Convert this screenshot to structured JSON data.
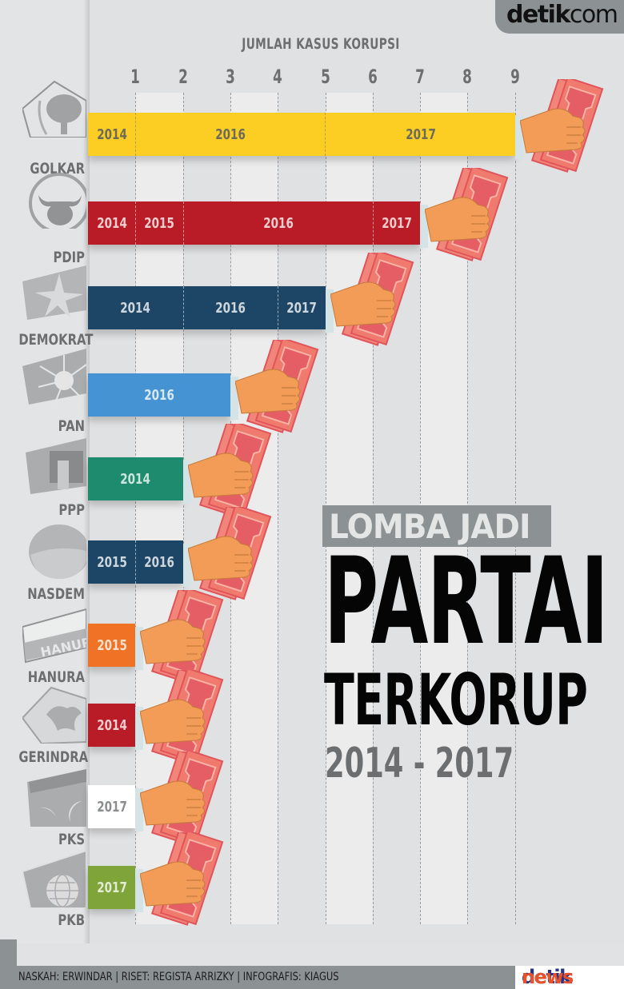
{
  "branding": {
    "top_logo": {
      "part1": "detik",
      "part2": "com"
    },
    "bottom_logo": {
      "part1": "detik",
      "part2": "news"
    }
  },
  "title": {
    "kicker": "LOMBA JADI",
    "line1": "PARTAI",
    "line2": "TERKORUP",
    "period": "2014 - 2017"
  },
  "credits": "NASKAH: ERWINDAR | RISET: REGISTA ARRIZKY | INFOGRAFIS: KIAGUS",
  "axis": {
    "title": "JUMLAH KASUS KORUPSI",
    "ticks": [
      "1",
      "2",
      "3",
      "4",
      "5",
      "6",
      "7",
      "8",
      "9"
    ]
  },
  "colors": {
    "golkar": "#FCCD22",
    "pdip": "#B91C26",
    "demokrat": "#1C4566",
    "pan": "#4693D4",
    "ppp": "#1F8B6E",
    "nasdem": "#1C4566",
    "hanura": "#F07325",
    "gerindra": "#B91C26",
    "pks": "#FFFFFF",
    "pkb": "#7FA43A",
    "hand": "#F29C58",
    "money": "#F07A6E",
    "background": "#E1E2E3"
  },
  "chart_data": {
    "type": "bar",
    "orientation": "horizontal-stacked",
    "title": "LOMBA JADI PARTAI TERKORUP 2014 - 2017",
    "xlabel": "JUMLAH KASUS KORUPSI",
    "ylabel": "",
    "xlim": [
      0,
      9
    ],
    "x_ticks": [
      1,
      2,
      3,
      4,
      5,
      6,
      7,
      8,
      9
    ],
    "grid": true,
    "categories": [
      "GOLKAR",
      "PDIP",
      "DEMOKRAT",
      "PAN",
      "PPP",
      "NASDEM",
      "HANURA",
      "GERINDRA",
      "PKS",
      "PKB"
    ],
    "totals": [
      9,
      7,
      5,
      3,
      2,
      2,
      1,
      1,
      1,
      1
    ],
    "rows": [
      {
        "party": "GOLKAR",
        "total": 9,
        "color": "#FCCD22",
        "segments": [
          {
            "year": "2014",
            "count": 1
          },
          {
            "year": "2016",
            "count": 4
          },
          {
            "year": "2017",
            "count": 4
          }
        ]
      },
      {
        "party": "PDIP",
        "total": 7,
        "color": "#B91C26",
        "segments": [
          {
            "year": "2014",
            "count": 1
          },
          {
            "year": "2015",
            "count": 1
          },
          {
            "year": "2016",
            "count": 4
          },
          {
            "year": "2017",
            "count": 1
          }
        ]
      },
      {
        "party": "DEMOKRAT",
        "total": 5,
        "color": "#1C4566",
        "segments": [
          {
            "year": "2014",
            "count": 2
          },
          {
            "year": "2016",
            "count": 2
          },
          {
            "year": "2017",
            "count": 1
          }
        ]
      },
      {
        "party": "PAN",
        "total": 3,
        "color": "#4693D4",
        "segments": [
          {
            "year": "2016",
            "count": 3
          }
        ]
      },
      {
        "party": "PPP",
        "total": 2,
        "color": "#1F8B6E",
        "segments": [
          {
            "year": "2014",
            "count": 2
          }
        ]
      },
      {
        "party": "NASDEM",
        "total": 2,
        "color": "#1C4566",
        "segments": [
          {
            "year": "2015",
            "count": 1
          },
          {
            "year": "2016",
            "count": 1
          }
        ]
      },
      {
        "party": "HANURA",
        "total": 1,
        "color": "#F07325",
        "segments": [
          {
            "year": "2015",
            "count": 1
          }
        ]
      },
      {
        "party": "GERINDRA",
        "total": 1,
        "color": "#B91C26",
        "segments": [
          {
            "year": "2014",
            "count": 1
          }
        ]
      },
      {
        "party": "PKS",
        "total": 1,
        "color": "#FFFFFF",
        "segments": [
          {
            "year": "2017",
            "count": 1
          }
        ]
      },
      {
        "party": "PKB",
        "total": 1,
        "color": "#7FA43A",
        "segments": [
          {
            "year": "2017",
            "count": 1
          }
        ]
      }
    ],
    "series_by_year": [
      {
        "name": "2014",
        "values": [
          1,
          1,
          2,
          0,
          2,
          0,
          0,
          1,
          0,
          0
        ]
      },
      {
        "name": "2015",
        "values": [
          0,
          1,
          0,
          0,
          0,
          1,
          1,
          0,
          0,
          0
        ]
      },
      {
        "name": "2016",
        "values": [
          4,
          4,
          2,
          3,
          0,
          1,
          0,
          0,
          0,
          0
        ]
      },
      {
        "name": "2017",
        "values": [
          4,
          1,
          1,
          0,
          0,
          0,
          0,
          0,
          1,
          1
        ]
      }
    ],
    "decoration": "hand clutching banknotes at end of each bar"
  }
}
